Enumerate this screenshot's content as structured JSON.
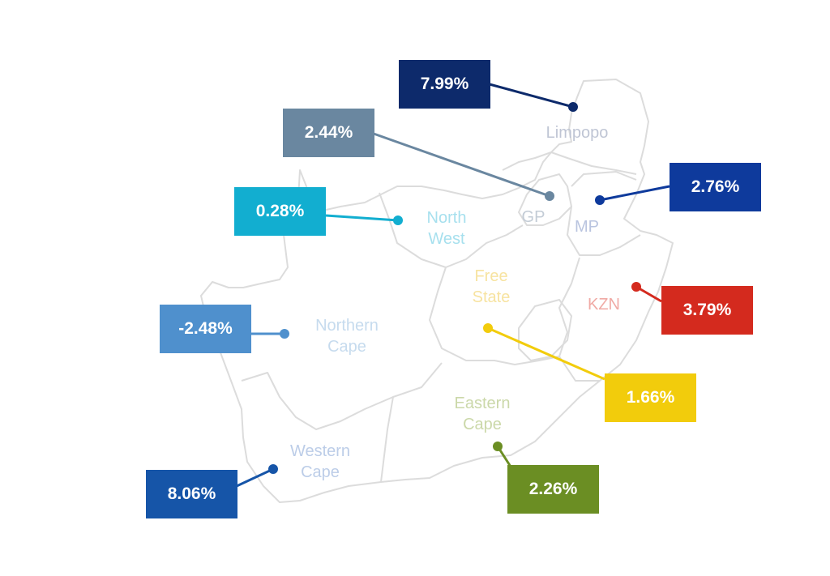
{
  "map": {
    "border_color": "#dcdcdc",
    "provinces": [
      {
        "id": "limpopo",
        "label_lines": [
          "Limpopo"
        ],
        "value": "7.99%",
        "color": "#0d2a6b",
        "label_color": "#bfc5d4"
      },
      {
        "id": "gauteng",
        "label_lines": [
          "GP"
        ],
        "value": "2.44%",
        "color": "#6a87a0",
        "label_color": "#c3ccd6"
      },
      {
        "id": "mpumalanga",
        "label_lines": [
          "MP"
        ],
        "value": "2.76%",
        "color": "#0e3a9c",
        "label_color": "#b9c4df"
      },
      {
        "id": "north-west",
        "label_lines": [
          "North",
          "West"
        ],
        "value": "0.28%",
        "color": "#12aed0",
        "label_color": "#a7e0ee"
      },
      {
        "id": "kwazulu-natal",
        "label_lines": [
          "KZN"
        ],
        "value": "3.79%",
        "color": "#d42a1e",
        "label_color": "#f0aaa5"
      },
      {
        "id": "free-state",
        "label_lines": [
          "Free",
          "State"
        ],
        "value": "1.66%",
        "color": "#f2cc0c",
        "label_color": "#f7e3a0"
      },
      {
        "id": "northern-cape",
        "label_lines": [
          "Northern",
          "Cape"
        ],
        "value": "-2.48%",
        "color": "#4f90cd",
        "label_color": "#c6dbee"
      },
      {
        "id": "eastern-cape",
        "label_lines": [
          "Eastern",
          "Cape"
        ],
        "value": "2.26%",
        "color": "#6b8e23",
        "label_color": "#cbd8a9"
      },
      {
        "id": "western-cape",
        "label_lines": [
          "Western",
          "Cape"
        ],
        "value": "8.06%",
        "color": "#1655a8",
        "label_color": "#bccde8"
      }
    ]
  }
}
